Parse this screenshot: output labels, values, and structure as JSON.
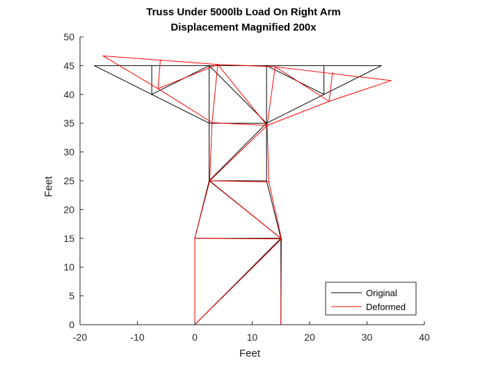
{
  "chart_data": {
    "type": "line",
    "title": "Truss Under 5000lb Load On Right Arm",
    "subtitle": "Displacement Magnified 200x",
    "xlabel": "Feet",
    "ylabel": "Feet",
    "xlim": [
      -20,
      40
    ],
    "ylim": [
      0,
      50
    ],
    "xticks": [
      -20,
      -10,
      0,
      10,
      20,
      30,
      40
    ],
    "yticks": [
      0,
      5,
      10,
      15,
      20,
      25,
      30,
      35,
      40,
      45,
      50
    ],
    "grid": false,
    "legend_position": "bottom-right",
    "series": [
      {
        "name": "Original",
        "color": "#000000",
        "segments": [
          [
            [
              0,
              0
            ],
            [
              15,
              0
            ]
          ],
          [
            [
              0,
              0
            ],
            [
              0,
              15
            ]
          ],
          [
            [
              15,
              0
            ],
            [
              15,
              15
            ]
          ],
          [
            [
              0,
              0
            ],
            [
              15,
              15
            ]
          ],
          [
            [
              0,
              15
            ],
            [
              15,
              15
            ]
          ],
          [
            [
              0,
              15
            ],
            [
              2.5,
              25
            ]
          ],
          [
            [
              15,
              15
            ],
            [
              12.5,
              25
            ]
          ],
          [
            [
              2.5,
              25
            ],
            [
              15,
              15
            ]
          ],
          [
            [
              2.5,
              25
            ],
            [
              12.5,
              25
            ]
          ],
          [
            [
              2.5,
              25
            ],
            [
              2.5,
              35
            ]
          ],
          [
            [
              12.5,
              25
            ],
            [
              12.5,
              35
            ]
          ],
          [
            [
              2.5,
              25
            ],
            [
              12.5,
              35
            ]
          ],
          [
            [
              2.5,
              35
            ],
            [
              12.5,
              35
            ]
          ],
          [
            [
              -17.5,
              45
            ],
            [
              2.5,
              45
            ]
          ],
          [
            [
              2.5,
              45
            ],
            [
              12.5,
              45
            ]
          ],
          [
            [
              12.5,
              45
            ],
            [
              32.5,
              45
            ]
          ],
          [
            [
              -17.5,
              45
            ],
            [
              -7.5,
              40
            ]
          ],
          [
            [
              -7.5,
              40
            ],
            [
              2.5,
              35
            ]
          ],
          [
            [
              12.5,
              35
            ],
            [
              22.5,
              40
            ]
          ],
          [
            [
              22.5,
              40
            ],
            [
              32.5,
              45
            ]
          ],
          [
            [
              -7.5,
              40
            ],
            [
              -7.5,
              45
            ]
          ],
          [
            [
              -7.5,
              40
            ],
            [
              2.5,
              45
            ]
          ],
          [
            [
              2.5,
              35
            ],
            [
              2.5,
              45
            ]
          ],
          [
            [
              2.5,
              45
            ],
            [
              12.5,
              35
            ]
          ],
          [
            [
              12.5,
              35
            ],
            [
              12.5,
              45
            ]
          ],
          [
            [
              12.5,
              45
            ],
            [
              22.5,
              40
            ]
          ],
          [
            [
              22.5,
              40
            ],
            [
              22.5,
              45
            ]
          ]
        ]
      },
      {
        "name": "Deformed",
        "color": "#ff0000",
        "segments": [
          [
            [
              0,
              0
            ],
            [
              15,
              0
            ]
          ],
          [
            [
              0,
              0
            ],
            [
              0,
              15
            ]
          ],
          [
            [
              15,
              0
            ],
            [
              15.1,
              14.9
            ]
          ],
          [
            [
              0,
              0
            ],
            [
              15.1,
              14.9
            ]
          ],
          [
            [
              0,
              15
            ],
            [
              15.1,
              14.9
            ]
          ],
          [
            [
              0,
              15
            ],
            [
              2.6,
              25
            ]
          ],
          [
            [
              15.1,
              14.9
            ],
            [
              12.9,
              24.8
            ]
          ],
          [
            [
              2.6,
              25
            ],
            [
              15.1,
              14.9
            ]
          ],
          [
            [
              2.6,
              25
            ],
            [
              12.9,
              24.8
            ]
          ],
          [
            [
              2.6,
              25
            ],
            [
              3,
              35.1
            ]
          ],
          [
            [
              12.9,
              24.8
            ],
            [
              12.6,
              34.6
            ]
          ],
          [
            [
              2.6,
              25
            ],
            [
              12.6,
              34.6
            ]
          ],
          [
            [
              3,
              35.1
            ],
            [
              12.6,
              34.6
            ]
          ],
          [
            [
              -16,
              46.7
            ],
            [
              4,
              45.2
            ]
          ],
          [
            [
              4,
              45.2
            ],
            [
              14,
              44.8
            ]
          ],
          [
            [
              14,
              44.8
            ],
            [
              34.2,
              42.4
            ]
          ],
          [
            [
              -16,
              46.7
            ],
            [
              -6.4,
              41
            ]
          ],
          [
            [
              -6.4,
              41
            ],
            [
              3,
              35.1
            ]
          ],
          [
            [
              12.6,
              34.6
            ],
            [
              23.4,
              38.8
            ]
          ],
          [
            [
              23.4,
              38.8
            ],
            [
              34.2,
              42.4
            ]
          ],
          [
            [
              -6.4,
              41
            ],
            [
              -6,
              46
            ]
          ],
          [
            [
              -6.4,
              41
            ],
            [
              4,
              45.2
            ]
          ],
          [
            [
              3,
              35.1
            ],
            [
              4,
              45.2
            ]
          ],
          [
            [
              4,
              45.2
            ],
            [
              12.6,
              34.6
            ]
          ],
          [
            [
              12.6,
              34.6
            ],
            [
              14,
              44.8
            ]
          ],
          [
            [
              14,
              44.8
            ],
            [
              23.4,
              38.8
            ]
          ],
          [
            [
              23.4,
              38.8
            ],
            [
              24,
              43.8
            ]
          ]
        ]
      }
    ]
  }
}
